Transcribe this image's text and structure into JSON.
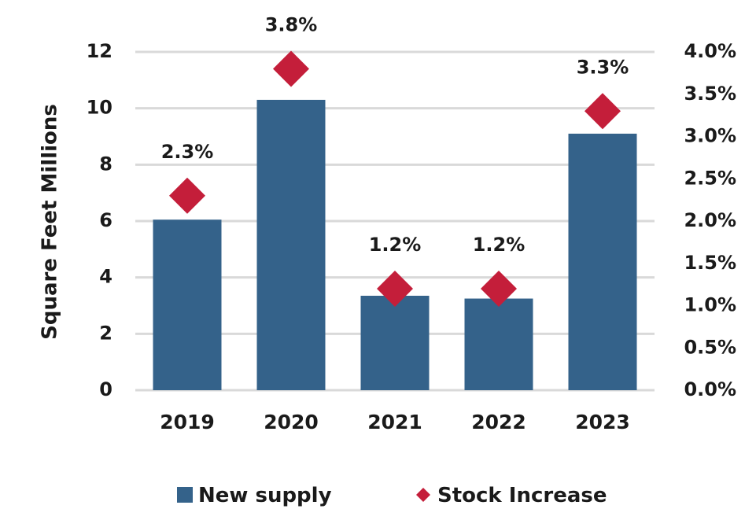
{
  "chart_data": {
    "type": "bar",
    "categories": [
      "2019",
      "2020",
      "2021",
      "2022",
      "2023"
    ],
    "series": [
      {
        "name": "New supply",
        "type": "bar",
        "axis": "left",
        "color": "#34628a",
        "values": [
          6.05,
          10.3,
          3.35,
          3.25,
          9.1
        ]
      },
      {
        "name": "Stock Increase",
        "type": "scatter",
        "marker": "diamond",
        "axis": "right",
        "color": "#c41e3a",
        "values": [
          2.3,
          3.8,
          1.2,
          1.2,
          3.3
        ],
        "data_labels": [
          "2.3%",
          "3.8%",
          "1.2%",
          "1.2%",
          "3.3%"
        ]
      }
    ],
    "ylabel": "Square Feet Millions",
    "ylim": [
      0,
      12
    ],
    "y_ticks": [
      "0",
      "2",
      "4",
      "6",
      "8",
      "10",
      "12"
    ],
    "y_tick_values": [
      0,
      2,
      4,
      6,
      8,
      10,
      12
    ],
    "y2lim": [
      0,
      4.0
    ],
    "y2_ticks": [
      "0.0%",
      "0.5%",
      "1.0%",
      "1.5%",
      "2.0%",
      "2.5%",
      "3.0%",
      "3.5%",
      "4.0%"
    ],
    "y2_tick_values": [
      0,
      0.5,
      1.0,
      1.5,
      2.0,
      2.5,
      3.0,
      3.5,
      4.0
    ],
    "grid": true,
    "gridColor": "#d9d9d9",
    "legend_position": "bottom"
  }
}
